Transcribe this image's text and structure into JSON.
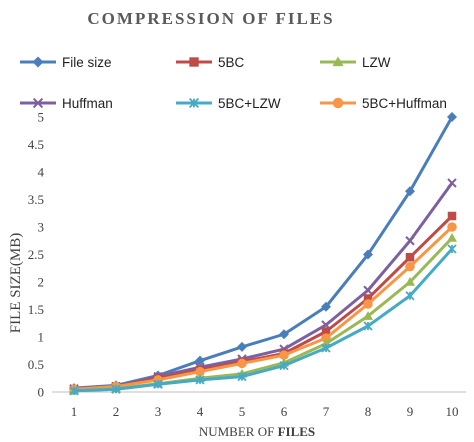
{
  "chart_data": {
    "type": "line",
    "title": "COMPRESSION OF FILES",
    "xlabel_prefix": "NUMBER OF ",
    "xlabel_bold": "FILES",
    "ylabel": "FILE SIZE(MB)",
    "x": [
      1,
      2,
      3,
      4,
      5,
      6,
      7,
      8,
      9,
      10
    ],
    "x_ticks": [
      "1",
      "2",
      "3",
      "4",
      "5",
      "6",
      "7",
      "8",
      "9",
      "10"
    ],
    "ylim": [
      0,
      5
    ],
    "y_ticks": [
      "0",
      "0.5",
      "1",
      "1.5",
      "2",
      "2.5",
      "3",
      "3.5",
      "4",
      "4.5",
      "5"
    ],
    "y_tick_values": [
      0,
      0.5,
      1,
      1.5,
      2,
      2.5,
      3,
      3.5,
      4,
      4.5,
      5
    ],
    "grid": false,
    "legend_position": "top",
    "series": [
      {
        "name": "File size",
        "color": "#4a7ebb",
        "marker": "diamond",
        "values": [
          0.07,
          0.12,
          0.3,
          0.57,
          0.82,
          1.05,
          1.55,
          2.5,
          3.65,
          5.0
        ]
      },
      {
        "name": "5BC",
        "color": "#be4b48",
        "marker": "square",
        "values": [
          0.05,
          0.1,
          0.25,
          0.4,
          0.55,
          0.7,
          1.1,
          1.7,
          2.45,
          3.2
        ]
      },
      {
        "name": "LZW",
        "color": "#98b954",
        "marker": "triangle",
        "values": [
          0.02,
          0.06,
          0.15,
          0.25,
          0.33,
          0.53,
          0.88,
          1.38,
          2.0,
          2.8
        ]
      },
      {
        "name": "Huffman",
        "color": "#7d60a0",
        "marker": "x",
        "values": [
          0.06,
          0.1,
          0.28,
          0.45,
          0.6,
          0.78,
          1.22,
          1.85,
          2.75,
          3.8
        ]
      },
      {
        "name": "5BC+LZW",
        "color": "#46aac5",
        "marker": "asterisk",
        "values": [
          0.02,
          0.05,
          0.14,
          0.22,
          0.28,
          0.48,
          0.8,
          1.2,
          1.75,
          2.6
        ]
      },
      {
        "name": "5BC+Huffman",
        "color": "#f79646",
        "marker": "circle",
        "values": [
          0.05,
          0.1,
          0.22,
          0.37,
          0.52,
          0.67,
          0.98,
          1.6,
          2.28,
          3.0
        ]
      }
    ]
  }
}
